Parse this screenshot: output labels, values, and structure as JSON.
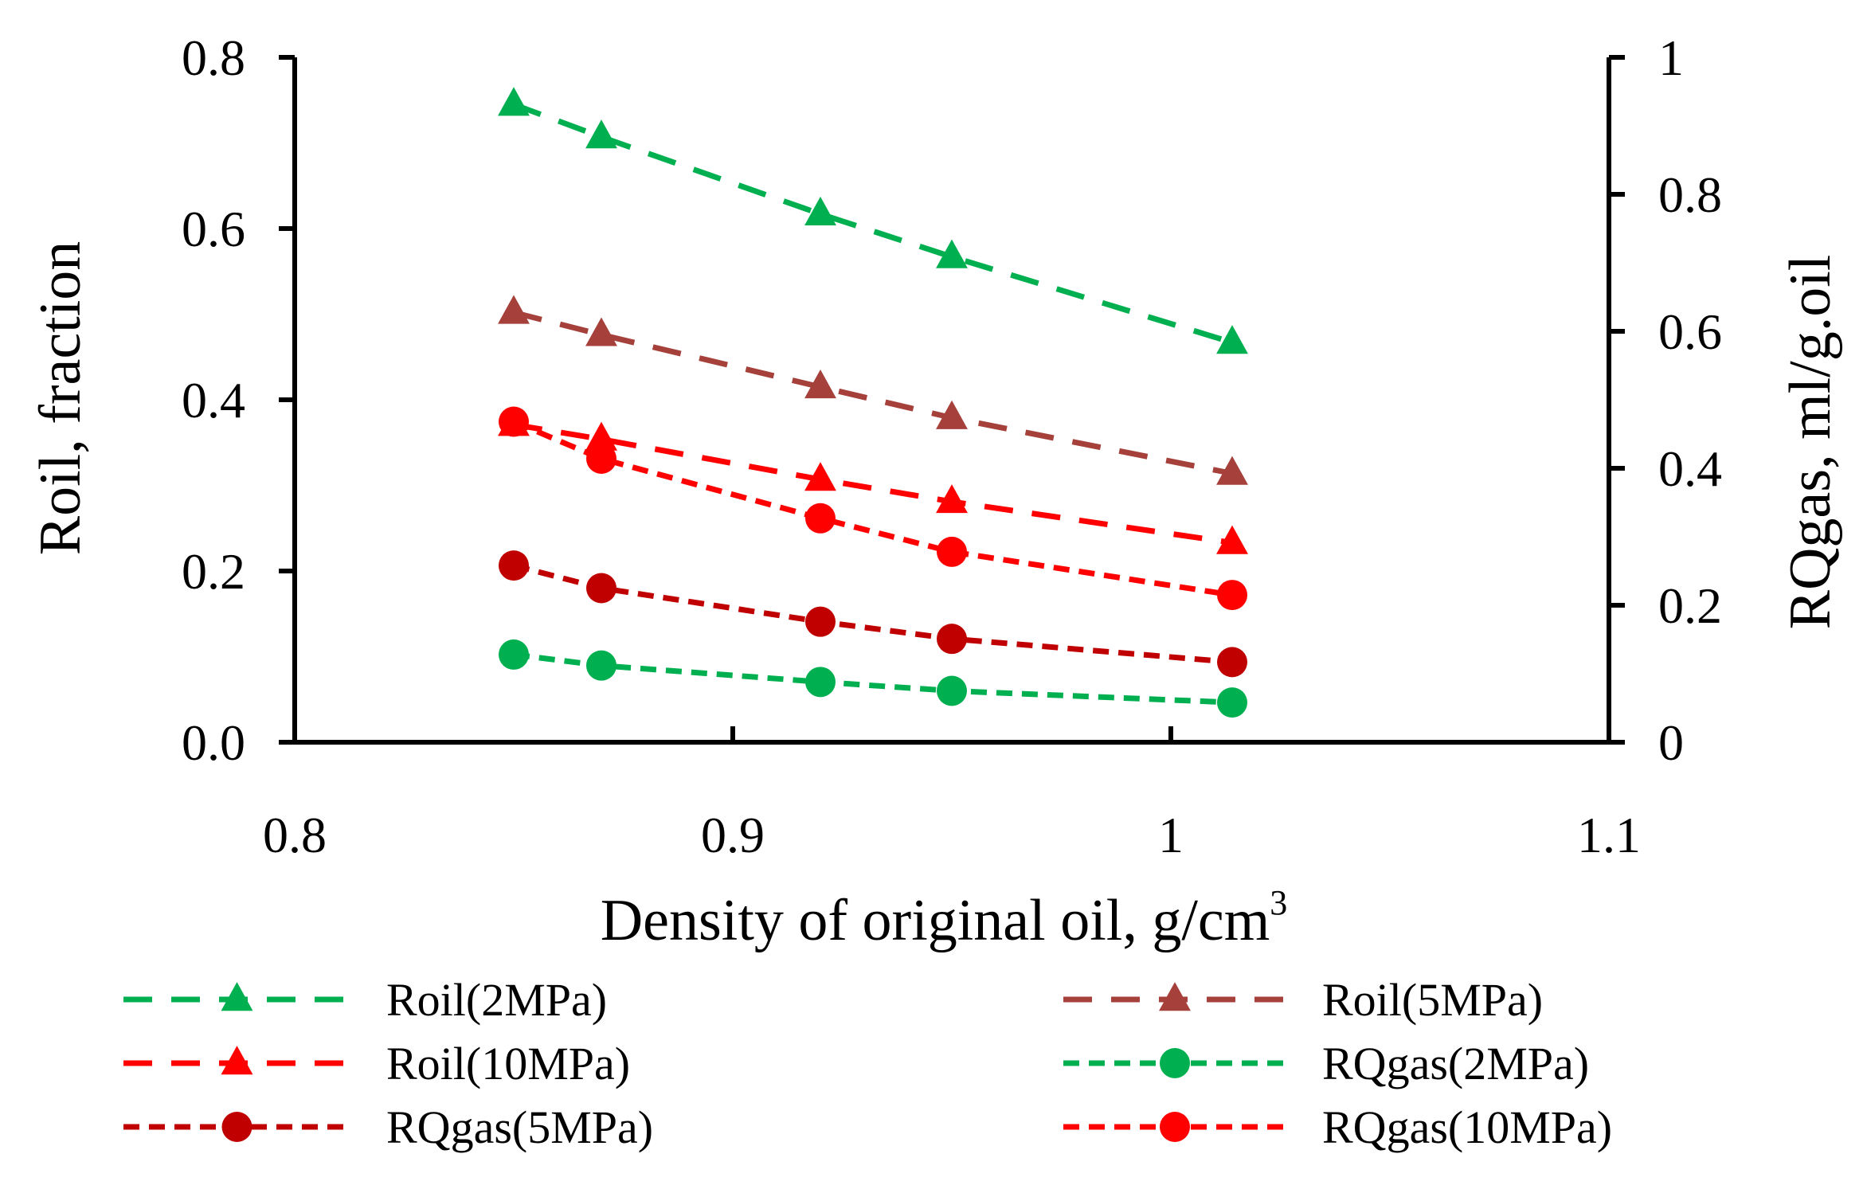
{
  "chart_data": {
    "type": "line",
    "title": "",
    "xlabel": "Density of original oil, g/cm",
    "xlabel_sup": "3",
    "ylabel_left": "Roil, fraction",
    "ylabel_right": "RQgas, ml/g.oil",
    "xlim": [
      0.8,
      1.1
    ],
    "ylim_left": [
      0,
      0.8
    ],
    "ylim_right": [
      0,
      1
    ],
    "x_ticks": [
      "0.8",
      "0.9",
      "1",
      "1.1"
    ],
    "x_tick_values": [
      0.8,
      0.9,
      1.0,
      1.1
    ],
    "y_left_ticks": [
      "0.0",
      "0.2",
      "0.4",
      "0.6",
      "0.8"
    ],
    "y_left_tick_values": [
      0,
      0.2,
      0.4,
      0.6,
      0.8
    ],
    "y_right_ticks": [
      "0",
      "0.2",
      "0.4",
      "0.6",
      "0.8",
      "1"
    ],
    "y_right_tick_values": [
      0,
      0.2,
      0.4,
      0.6,
      0.8,
      1.0
    ],
    "grid": false,
    "legend_position": "bottom",
    "x": [
      0.85,
      0.87,
      0.92,
      0.95,
      1.014
    ],
    "series": [
      {
        "name": "Roil(2MPa)",
        "axis": "left",
        "marker": "triangle",
        "dash": "long",
        "color": "#00b050",
        "values": [
          0.745,
          0.707,
          0.617,
          0.567,
          0.467
        ]
      },
      {
        "name": "Roil(5MPa)",
        "axis": "left",
        "marker": "triangle",
        "dash": "long",
        "color": "#a5403a",
        "values": [
          0.502,
          0.476,
          0.415,
          0.379,
          0.314
        ]
      },
      {
        "name": "Roil(10MPa)",
        "axis": "left",
        "marker": "triangle",
        "dash": "long",
        "color": "#ff0000",
        "values": [
          0.371,
          0.354,
          0.307,
          0.281,
          0.233
        ]
      },
      {
        "name": "RQgas(2MPa)",
        "axis": "right",
        "marker": "circle",
        "dash": "short",
        "color": "#00b050",
        "values": [
          0.128,
          0.112,
          0.088,
          0.075,
          0.058
        ]
      },
      {
        "name": "RQgas(5MPa)",
        "axis": "right",
        "marker": "circle",
        "dash": "short",
        "color": "#c00000",
        "values": [
          0.258,
          0.225,
          0.176,
          0.151,
          0.117
        ]
      },
      {
        "name": "RQgas(10MPa)",
        "axis": "right",
        "marker": "circle",
        "dash": "short",
        "color": "#ff0000",
        "values": [
          0.468,
          0.414,
          0.327,
          0.278,
          0.215
        ]
      }
    ]
  }
}
